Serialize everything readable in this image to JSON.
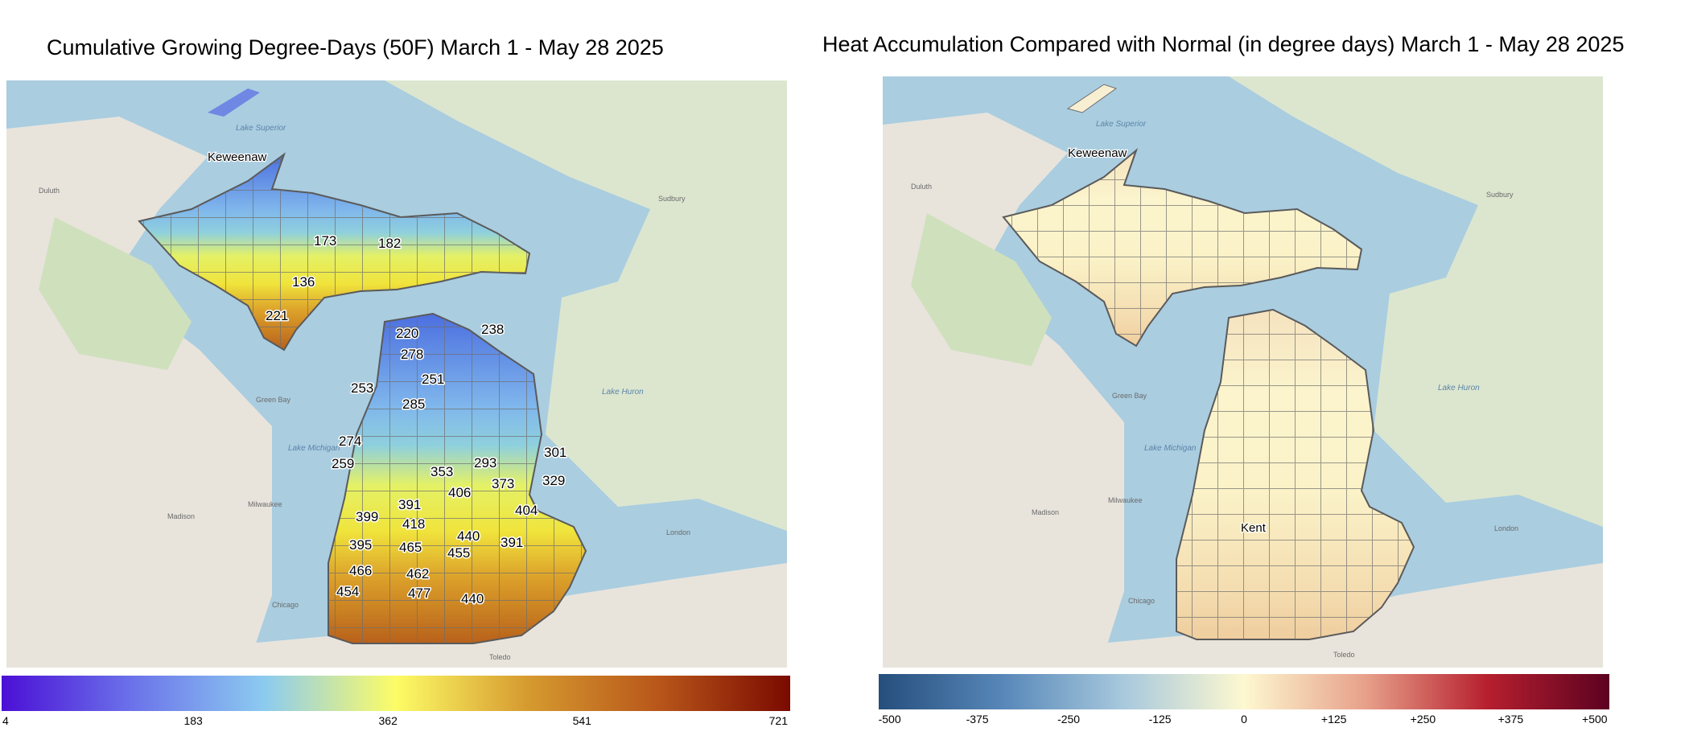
{
  "left_panel": {
    "title": "Cumulative Growing Degree-Days (50F) March 1 - May 28 2025",
    "map_label": "Keweenaw",
    "water_labels": [
      "Lake Superior",
      "Lake Michigan",
      "Lake Huron"
    ],
    "colorbar": {
      "colors": [
        "#4b0fd6",
        "#6b73ea",
        "#8ccbf0",
        "#fdfc66",
        "#d69a2f",
        "#b8561a",
        "#7a0a00"
      ],
      "ticks": [
        "4",
        "183",
        "362",
        "541",
        "721"
      ]
    },
    "values": [
      "173",
      "182",
      "136",
      "221",
      "220",
      "238",
      "278",
      "251",
      "253",
      "285",
      "274",
      "259",
      "301",
      "293",
      "353",
      "329",
      "373",
      "406",
      "391",
      "399",
      "404",
      "418",
      "440",
      "395",
      "465",
      "455",
      "391",
      "466",
      "462",
      "454",
      "477",
      "440"
    ]
  },
  "right_panel": {
    "title": "Heat Accumulation Compared with Normal (in degree days) March 1 - May 28 2025",
    "map_labels": [
      "Keweenaw",
      "Kent"
    ],
    "water_labels": [
      "Lake Superior",
      "Lake Michigan",
      "Lake Huron"
    ],
    "colorbar": {
      "colors": [
        "#254e7c",
        "#5686b8",
        "#a7c8dd",
        "#fdf8d0",
        "#e7a08a",
        "#b61f2e",
        "#5c0221"
      ],
      "ticks": [
        "-500",
        "-375",
        "-250",
        "-125",
        "0",
        "+125",
        "+250",
        "+375",
        "+500"
      ]
    }
  },
  "city_labels": [
    "Duluth",
    "Madison",
    "Milwaukee",
    "Chicago",
    "Toledo",
    "London",
    "Sudbury",
    "Green Bay"
  ]
}
